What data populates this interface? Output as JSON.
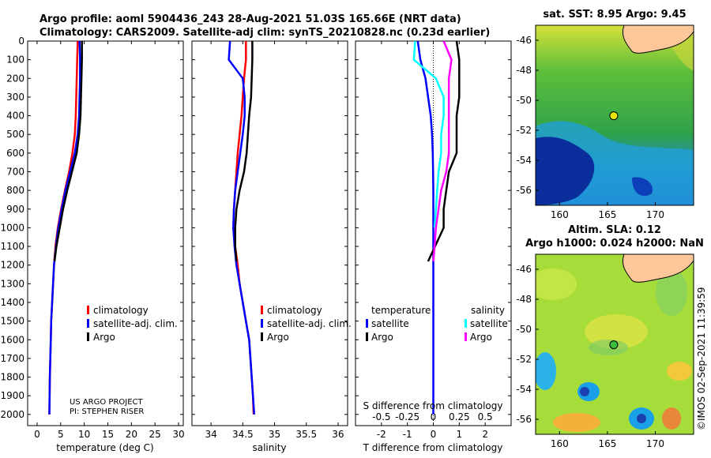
{
  "header": {
    "title_line1": "Argo profile: aoml 5904436_243 28-Aug-2021 51.03S 165.66E (NRT data)",
    "title_line2": "Climatology: CARS2009. Satellite-adj clim: synTS_20210828.nc (0.23d earlier)"
  },
  "colors": {
    "climatology": "#ff0000",
    "satellite_adj": "#0000ff",
    "argo": "#000000",
    "temp_diff_sat": "#00ffff",
    "sal_diff_sat": "#ff00ff",
    "land": "#fdc79a"
  },
  "chart_data": [
    {
      "id": "temperature",
      "type": "line",
      "xlabel": "temperature (deg C)",
      "ylabel": "",
      "xlim": [
        -2,
        31
      ],
      "ylim": [
        0,
        2060
      ],
      "y_reversed": true,
      "xticks": [
        0,
        5,
        10,
        15,
        20,
        25,
        30
      ],
      "yticks": [
        0,
        100,
        200,
        300,
        400,
        500,
        600,
        700,
        800,
        900,
        1000,
        1100,
        1200,
        1300,
        1400,
        1500,
        1600,
        1700,
        1800,
        1900,
        2000
      ],
      "legend": [
        "climatology",
        "satellite-adj. clim.",
        "Argo"
      ],
      "legend_position": "lower-right",
      "annotations": [
        "US ARGO PROJECT",
        "PI: STEPHEN RISER"
      ],
      "series": [
        {
          "name": "climatology",
          "x": [
            8.6,
            8.5,
            8.4,
            8.3,
            8.2,
            8.0,
            7.5,
            6.8,
            5.9,
            5.1,
            4.4,
            3.9,
            3.6,
            3.4,
            3.2,
            3.0,
            2.9,
            2.8,
            2.7,
            2.65,
            2.6
          ],
          "y": [
            0,
            100,
            200,
            300,
            400,
            500,
            600,
            700,
            800,
            900,
            1000,
            1100,
            1200,
            1300,
            1400,
            1500,
            1600,
            1700,
            1800,
            1900,
            2000
          ]
        },
        {
          "name": "satellite-adj. clim.",
          "x": [
            9.0,
            9.1,
            9.1,
            9.0,
            8.9,
            8.6,
            8.0,
            7.0,
            6.0,
            5.2,
            4.5,
            4.0,
            3.6,
            3.4,
            3.2,
            3.0,
            2.9,
            2.8,
            2.7,
            2.65,
            2.6
          ],
          "y": [
            0,
            100,
            200,
            300,
            400,
            500,
            600,
            700,
            800,
            900,
            1000,
            1100,
            1200,
            1300,
            1400,
            1500,
            1600,
            1700,
            1800,
            1900,
            2000
          ]
        },
        {
          "name": "Argo",
          "x": [
            9.5,
            9.5,
            9.4,
            9.3,
            9.2,
            8.9,
            8.4,
            7.4,
            6.4,
            5.5,
            4.8,
            4.1,
            3.7
          ],
          "y": [
            0,
            100,
            200,
            300,
            400,
            500,
            600,
            700,
            800,
            900,
            1000,
            1100,
            1180
          ]
        }
      ]
    },
    {
      "id": "salinity",
      "type": "line",
      "xlabel": "salinity",
      "xlim": [
        33.7,
        36.15
      ],
      "ylim": [
        0,
        2060
      ],
      "y_reversed": true,
      "xticks": [
        34,
        34.5,
        35,
        35.5,
        36
      ],
      "legend": [
        "climatology",
        "satellite-adj. clim.",
        "Argo"
      ],
      "legend_position": "lower-right",
      "series": [
        {
          "name": "climatology",
          "x": [
            34.55,
            34.55,
            34.52,
            34.5,
            34.48,
            34.45,
            34.42,
            34.4,
            34.38,
            34.36,
            34.35,
            34.38,
            34.42,
            34.45,
            34.5,
            34.55,
            34.6,
            34.62,
            34.64,
            34.66,
            34.67
          ],
          "y": [
            0,
            100,
            200,
            300,
            400,
            500,
            600,
            700,
            800,
            900,
            1000,
            1100,
            1200,
            1300,
            1400,
            1500,
            1600,
            1700,
            1800,
            1900,
            2000
          ]
        },
        {
          "name": "satellite-adj. clim.",
          "x": [
            34.3,
            34.28,
            34.5,
            34.53,
            34.53,
            34.5,
            34.46,
            34.42,
            34.38,
            34.36,
            34.35,
            34.37,
            34.4,
            34.45,
            34.5,
            34.55,
            34.6,
            34.62,
            34.64,
            34.66,
            34.68
          ],
          "y": [
            0,
            100,
            200,
            300,
            400,
            500,
            600,
            700,
            800,
            900,
            1000,
            1100,
            1200,
            1300,
            1400,
            1500,
            1600,
            1700,
            1800,
            1900,
            2000
          ]
        },
        {
          "name": "Argo",
          "x": [
            34.65,
            34.65,
            34.64,
            34.63,
            34.6,
            34.58,
            34.56,
            34.52,
            34.45,
            34.4,
            34.38,
            34.38,
            34.4
          ],
          "y": [
            0,
            100,
            200,
            300,
            400,
            500,
            600,
            700,
            800,
            900,
            1000,
            1100,
            1180
          ]
        }
      ]
    },
    {
      "id": "difference",
      "type": "line",
      "xlabel": "T difference from climatology",
      "xlabel_top": "S difference from climatology",
      "xlim": [
        -3,
        3
      ],
      "ylim": [
        0,
        2060
      ],
      "y_reversed": true,
      "xticks": [
        -2,
        -1,
        0,
        1,
        2
      ],
      "xticklabels": [
        "-2",
        "-1",
        "0",
        "1",
        "2"
      ],
      "xticks_s": [
        -2,
        -1,
        0,
        1,
        2
      ],
      "xticklabels_s": [
        "-0.5",
        "-0.25",
        "0",
        "0.25",
        "0.5"
      ],
      "legend_groups": [
        {
          "title": "temperature",
          "entries": [
            "satellite",
            "Argo"
          ]
        },
        {
          "title": "salinity",
          "entries": [
            "satellite",
            "Argo"
          ]
        }
      ],
      "legend_position": "lower-center",
      "series": [
        {
          "name": "temperature satellite",
          "x": [
            -0.6,
            -0.5,
            -0.3,
            -0.2,
            -0.1,
            -0.05,
            -0.02,
            -0.01,
            0.0,
            0.0,
            0.0,
            0.0,
            0.0,
            0.0,
            0.0,
            0.0,
            0.0,
            0.0,
            0.0,
            0.0,
            0.0
          ],
          "y": [
            0,
            100,
            200,
            300,
            400,
            500,
            600,
            700,
            800,
            900,
            1000,
            1100,
            1200,
            1300,
            1400,
            1500,
            1600,
            1700,
            1800,
            1900,
            2000
          ]
        },
        {
          "name": "temperature Argo",
          "x": [
            0.9,
            1.0,
            1.0,
            1.0,
            0.9,
            0.9,
            0.9,
            0.6,
            0.5,
            0.4,
            0.4,
            -0.2
          ],
          "y": [
            0,
            100,
            200,
            300,
            400,
            500,
            600,
            700,
            800,
            900,
            1000,
            1180
          ]
        },
        {
          "name": "salinity satellite",
          "x": [
            -0.7,
            -0.75,
            0.1,
            0.4,
            0.4,
            0.3,
            0.3,
            0.2,
            0.15,
            0.1,
            0.05
          ],
          "y": [
            0,
            100,
            200,
            300,
            400,
            500,
            600,
            700,
            800,
            900,
            1000
          ]
        },
        {
          "name": "salinity Argo",
          "x": [
            0.4,
            0.7,
            0.6,
            0.6,
            0.6,
            0.6,
            0.6,
            0.5,
            0.3,
            0.2,
            0.1,
            0.05,
            0.0
          ],
          "y": [
            0,
            100,
            200,
            300,
            400,
            500,
            600,
            700,
            800,
            900,
            1000,
            1100,
            1180
          ]
        }
      ]
    },
    {
      "id": "sst_map",
      "type": "heatmap",
      "title": "sat. SST: 8.95 Argo: 9.45",
      "xlim": [
        157.5,
        174
      ],
      "ylim": [
        -57,
        -45
      ],
      "xticks": [
        160,
        165,
        170
      ],
      "yticks": [
        -46,
        -48,
        -50,
        -52,
        -54,
        -56
      ],
      "argo_position": [
        165.66,
        -51.03
      ],
      "argo_value": 9.45,
      "satellite_value": 8.95
    },
    {
      "id": "sla_map",
      "type": "heatmap",
      "title_line1": "Altim. SLA: 0.12",
      "title_line2": "Argo h1000: 0.024 h2000: NaN",
      "xlim": [
        157.5,
        174
      ],
      "ylim": [
        -57,
        -45
      ],
      "xticks": [
        160,
        165,
        170
      ],
      "yticks": [
        -46,
        -48,
        -50,
        -52,
        -54,
        -56
      ],
      "argo_position": [
        165.66,
        -51.03
      ],
      "sla_value": 0.12
    }
  ],
  "footer": {
    "credit": "©IMOS 02-Sep-2021 11:39:59"
  }
}
